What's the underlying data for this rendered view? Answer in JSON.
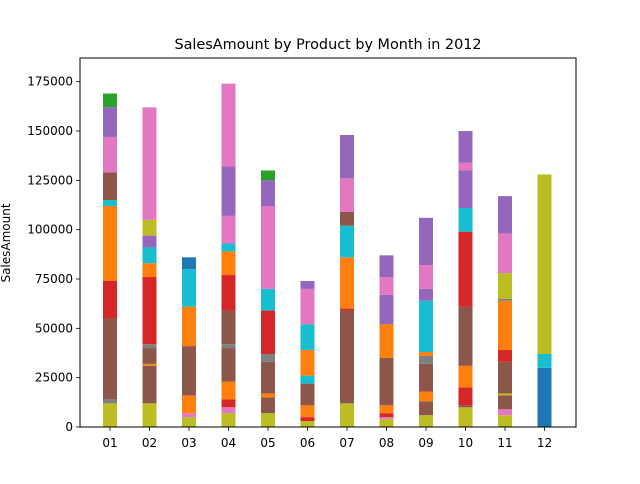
{
  "chart_data": {
    "type": "bar",
    "stacked": true,
    "title": "SalesAmount by Product by Month in 2012",
    "xlabel": "",
    "ylabel": "SalesAmount",
    "ylim": [
      0,
      187000
    ],
    "yticks": [
      0,
      25000,
      50000,
      75000,
      100000,
      125000,
      150000,
      175000
    ],
    "grid": false,
    "legend": false,
    "categories": [
      "01",
      "02",
      "03",
      "04",
      "05",
      "06",
      "07",
      "08",
      "09",
      "10",
      "11",
      "12"
    ],
    "stacks": [
      [
        {
          "color": "#bcbd22",
          "value": 12000
        },
        {
          "color": "#7f7f7f",
          "value": 2000
        },
        {
          "color": "#8c564b",
          "value": 41000
        },
        {
          "color": "#d62728",
          "value": 19000
        },
        {
          "color": "#ff7f0e",
          "value": 38000
        },
        {
          "color": "#17becf",
          "value": 3000
        },
        {
          "color": "#8c564b",
          "value": 14000
        },
        {
          "color": "#e377c2",
          "value": 18000
        },
        {
          "color": "#9467bd",
          "value": 15000
        },
        {
          "color": "#2ca02c",
          "value": 7000
        }
      ],
      [
        {
          "color": "#bcbd22",
          "value": 12000
        },
        {
          "color": "#8c564b",
          "value": 19000
        },
        {
          "color": "#ff7f0e",
          "value": 1000
        },
        {
          "color": "#8c564b",
          "value": 8000
        },
        {
          "color": "#7f7f7f",
          "value": 2000
        },
        {
          "color": "#d62728",
          "value": 34000
        },
        {
          "color": "#ff7f0e",
          "value": 7000
        },
        {
          "color": "#17becf",
          "value": 8000
        },
        {
          "color": "#9467bd",
          "value": 6000
        },
        {
          "color": "#bcbd22",
          "value": 8000
        },
        {
          "color": "#e377c2",
          "value": 57000
        }
      ],
      [
        {
          "color": "#bcbd22",
          "value": 5000
        },
        {
          "color": "#e377c2",
          "value": 2000
        },
        {
          "color": "#ff7f0e",
          "value": 9000
        },
        {
          "color": "#8c564b",
          "value": 25000
        },
        {
          "color": "#ff7f0e",
          "value": 20000
        },
        {
          "color": "#17becf",
          "value": 19000
        },
        {
          "color": "#1f77b4",
          "value": 6000
        }
      ],
      [
        {
          "color": "#bcbd22",
          "value": 7000
        },
        {
          "color": "#e377c2",
          "value": 3000
        },
        {
          "color": "#d62728",
          "value": 4000
        },
        {
          "color": "#ff7f0e",
          "value": 9000
        },
        {
          "color": "#8c564b",
          "value": 17000
        },
        {
          "color": "#7f7f7f",
          "value": 2000
        },
        {
          "color": "#8c564b",
          "value": 17000
        },
        {
          "color": "#d62728",
          "value": 18000
        },
        {
          "color": "#ff7f0e",
          "value": 12000
        },
        {
          "color": "#17becf",
          "value": 4000
        },
        {
          "color": "#e377c2",
          "value": 14000
        },
        {
          "color": "#9467bd",
          "value": 25000
        },
        {
          "color": "#e377c2",
          "value": 42000
        }
      ],
      [
        {
          "color": "#bcbd22",
          "value": 7000
        },
        {
          "color": "#8c564b",
          "value": 8000
        },
        {
          "color": "#ff7f0e",
          "value": 2000
        },
        {
          "color": "#8c564b",
          "value": 16000
        },
        {
          "color": "#7f7f7f",
          "value": 4000
        },
        {
          "color": "#d62728",
          "value": 22000
        },
        {
          "color": "#17becf",
          "value": 11000
        },
        {
          "color": "#e377c2",
          "value": 42000
        },
        {
          "color": "#9467bd",
          "value": 13000
        },
        {
          "color": "#2ca02c",
          "value": 5000
        }
      ],
      [
        {
          "color": "#bcbd22",
          "value": 3000
        },
        {
          "color": "#d62728",
          "value": 2000
        },
        {
          "color": "#ff7f0e",
          "value": 6000
        },
        {
          "color": "#8c564b",
          "value": 11000
        },
        {
          "color": "#17becf",
          "value": 4000
        },
        {
          "color": "#ff7f0e",
          "value": 13000
        },
        {
          "color": "#17becf",
          "value": 13000
        },
        {
          "color": "#e377c2",
          "value": 18000
        },
        {
          "color": "#9467bd",
          "value": 4000
        }
      ],
      [
        {
          "color": "#bcbd22",
          "value": 12000
        },
        {
          "color": "#8c564b",
          "value": 47000
        },
        {
          "color": "#d62728",
          "value": 1000
        },
        {
          "color": "#ff7f0e",
          "value": 26000
        },
        {
          "color": "#17becf",
          "value": 16000
        },
        {
          "color": "#8c564b",
          "value": 7000
        },
        {
          "color": "#e377c2",
          "value": 17000
        },
        {
          "color": "#9467bd",
          "value": 22000
        }
      ],
      [
        {
          "color": "#bcbd22",
          "value": 4000
        },
        {
          "color": "#e377c2",
          "value": 1000
        },
        {
          "color": "#d62728",
          "value": 2000
        },
        {
          "color": "#ff7f0e",
          "value": 4000
        },
        {
          "color": "#8c564b",
          "value": 24000
        },
        {
          "color": "#ff7f0e",
          "value": 17000
        },
        {
          "color": "#9467bd",
          "value": 15000
        },
        {
          "color": "#e377c2",
          "value": 9000
        },
        {
          "color": "#9467bd",
          "value": 11000
        }
      ],
      [
        {
          "color": "#bcbd22",
          "value": 6000
        },
        {
          "color": "#8c564b",
          "value": 7000
        },
        {
          "color": "#ff7f0e",
          "value": 5000
        },
        {
          "color": "#8c564b",
          "value": 14000
        },
        {
          "color": "#7f7f7f",
          "value": 4000
        },
        {
          "color": "#ff7f0e",
          "value": 2000
        },
        {
          "color": "#17becf",
          "value": 26000
        },
        {
          "color": "#9467bd",
          "value": 6000
        },
        {
          "color": "#e377c2",
          "value": 12000
        },
        {
          "color": "#9467bd",
          "value": 24000
        }
      ],
      [
        {
          "color": "#bcbd22",
          "value": 10000
        },
        {
          "color": "#8c564b",
          "value": 1000
        },
        {
          "color": "#d62728",
          "value": 9000
        },
        {
          "color": "#ff7f0e",
          "value": 11000
        },
        {
          "color": "#8c564b",
          "value": 30000
        },
        {
          "color": "#d62728",
          "value": 38000
        },
        {
          "color": "#17becf",
          "value": 12000
        },
        {
          "color": "#9467bd",
          "value": 19000
        },
        {
          "color": "#e377c2",
          "value": 4000
        },
        {
          "color": "#9467bd",
          "value": 16000
        }
      ],
      [
        {
          "color": "#bcbd22",
          "value": 6000
        },
        {
          "color": "#e377c2",
          "value": 3000
        },
        {
          "color": "#8c564b",
          "value": 7000
        },
        {
          "color": "#bcbd22",
          "value": 1000
        },
        {
          "color": "#8c564b",
          "value": 16000
        },
        {
          "color": "#d62728",
          "value": 6000
        },
        {
          "color": "#ff7f0e",
          "value": 25000
        },
        {
          "color": "#7f7f7f",
          "value": 1000
        },
        {
          "color": "#bcbd22",
          "value": 13000
        },
        {
          "color": "#e377c2",
          "value": 20000
        },
        {
          "color": "#9467bd",
          "value": 19000
        }
      ],
      [
        {
          "color": "#1f77b4",
          "value": 30000
        },
        {
          "color": "#17becf",
          "value": 7000
        },
        {
          "color": "#bcbd22",
          "value": 91000
        }
      ]
    ]
  }
}
